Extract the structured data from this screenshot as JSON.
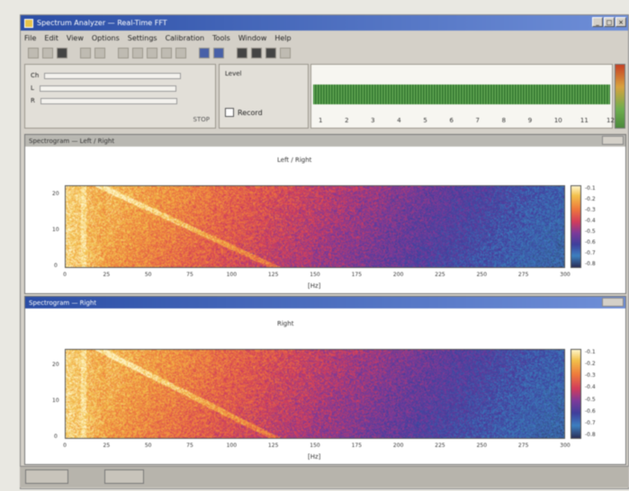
{
  "app": {
    "title": "Spectrum Analyzer — Real-Time FFT"
  },
  "menu": {
    "items": [
      "File",
      "Edit",
      "View",
      "Options",
      "Settings",
      "Calibration",
      "Tools",
      "Window",
      "Help"
    ]
  },
  "controls": {
    "row_labels": [
      "Ch",
      "L",
      "R"
    ],
    "stop_label": "STOP",
    "level_label": "Level",
    "record_label": "Record"
  },
  "waveform": {
    "ticks": [
      "1",
      "2",
      "3",
      "4",
      "5",
      "6",
      "7",
      "8",
      "9",
      "10",
      "11",
      "12"
    ]
  },
  "spectrogram1": {
    "window_title": "Spectrogram — Left / Right",
    "subtitle": "Left / Right",
    "corner_tag": "",
    "x_ticks": [
      "0",
      "25",
      "50",
      "75",
      "100",
      "125",
      "150",
      "175",
      "200",
      "225",
      "250",
      "275",
      "300"
    ],
    "x_label": "[Hz]",
    "y_ticks": [
      "0",
      "10",
      "20"
    ],
    "colorbar_ticks": [
      "-0.1",
      "-0.2",
      "-0.3",
      "-0.4",
      "-0.5",
      "-0.6",
      "-0.7",
      "-0.8"
    ]
  },
  "spectrogram2": {
    "window_title": "Spectrogram — Right",
    "subtitle": "Right",
    "corner_tag": "",
    "x_ticks": [
      "0",
      "25",
      "50",
      "75",
      "100",
      "125",
      "150",
      "175",
      "200",
      "225",
      "250",
      "275",
      "300"
    ],
    "x_label": "[Hz]",
    "y_ticks": [
      "0",
      "10",
      "20"
    ],
    "colorbar_ticks": [
      "-0.1",
      "-0.2",
      "-0.3",
      "-0.4",
      "-0.5",
      "-0.6",
      "-0.7",
      "-0.8"
    ]
  },
  "taskbar": {
    "buttons": [
      "",
      ""
    ]
  },
  "colors": {
    "title_bar": "#2b4ea6",
    "waveform": "#3f8a3a",
    "spec_warm": "#ee7a3c",
    "spec_cool": "#3e3f9c"
  }
}
